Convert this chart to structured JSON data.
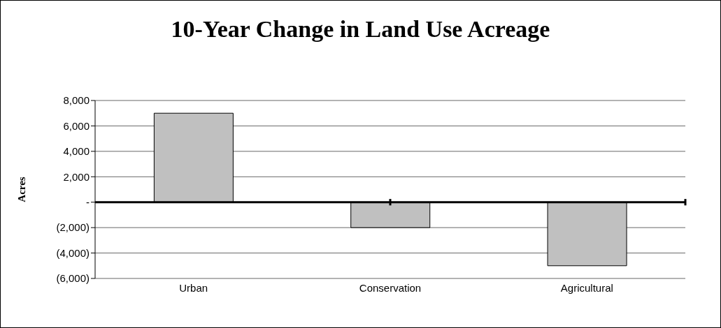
{
  "chart_data": {
    "type": "bar",
    "title": "10-Year Change in Land Use Acreage",
    "ylabel": "Acres",
    "categories": [
      "Urban",
      "Conservation",
      "Agricultural"
    ],
    "values": [
      7000,
      -2000,
      -5000
    ],
    "color": "#c0c0c0",
    "ylim": [
      -6000,
      8000
    ],
    "yticks": [
      {
        "value": -6000,
        "label": "(6,000)"
      },
      {
        "value": -4000,
        "label": "(4,000)"
      },
      {
        "value": -2000,
        "label": "(2,000)"
      },
      {
        "value": 0,
        "label": "-"
      },
      {
        "value": 2000,
        "label": "2,000"
      },
      {
        "value": 4000,
        "label": "4,000"
      },
      {
        "value": 6000,
        "label": "6,000"
      },
      {
        "value": 8000,
        "label": "8,000"
      }
    ],
    "grid": "y"
  }
}
